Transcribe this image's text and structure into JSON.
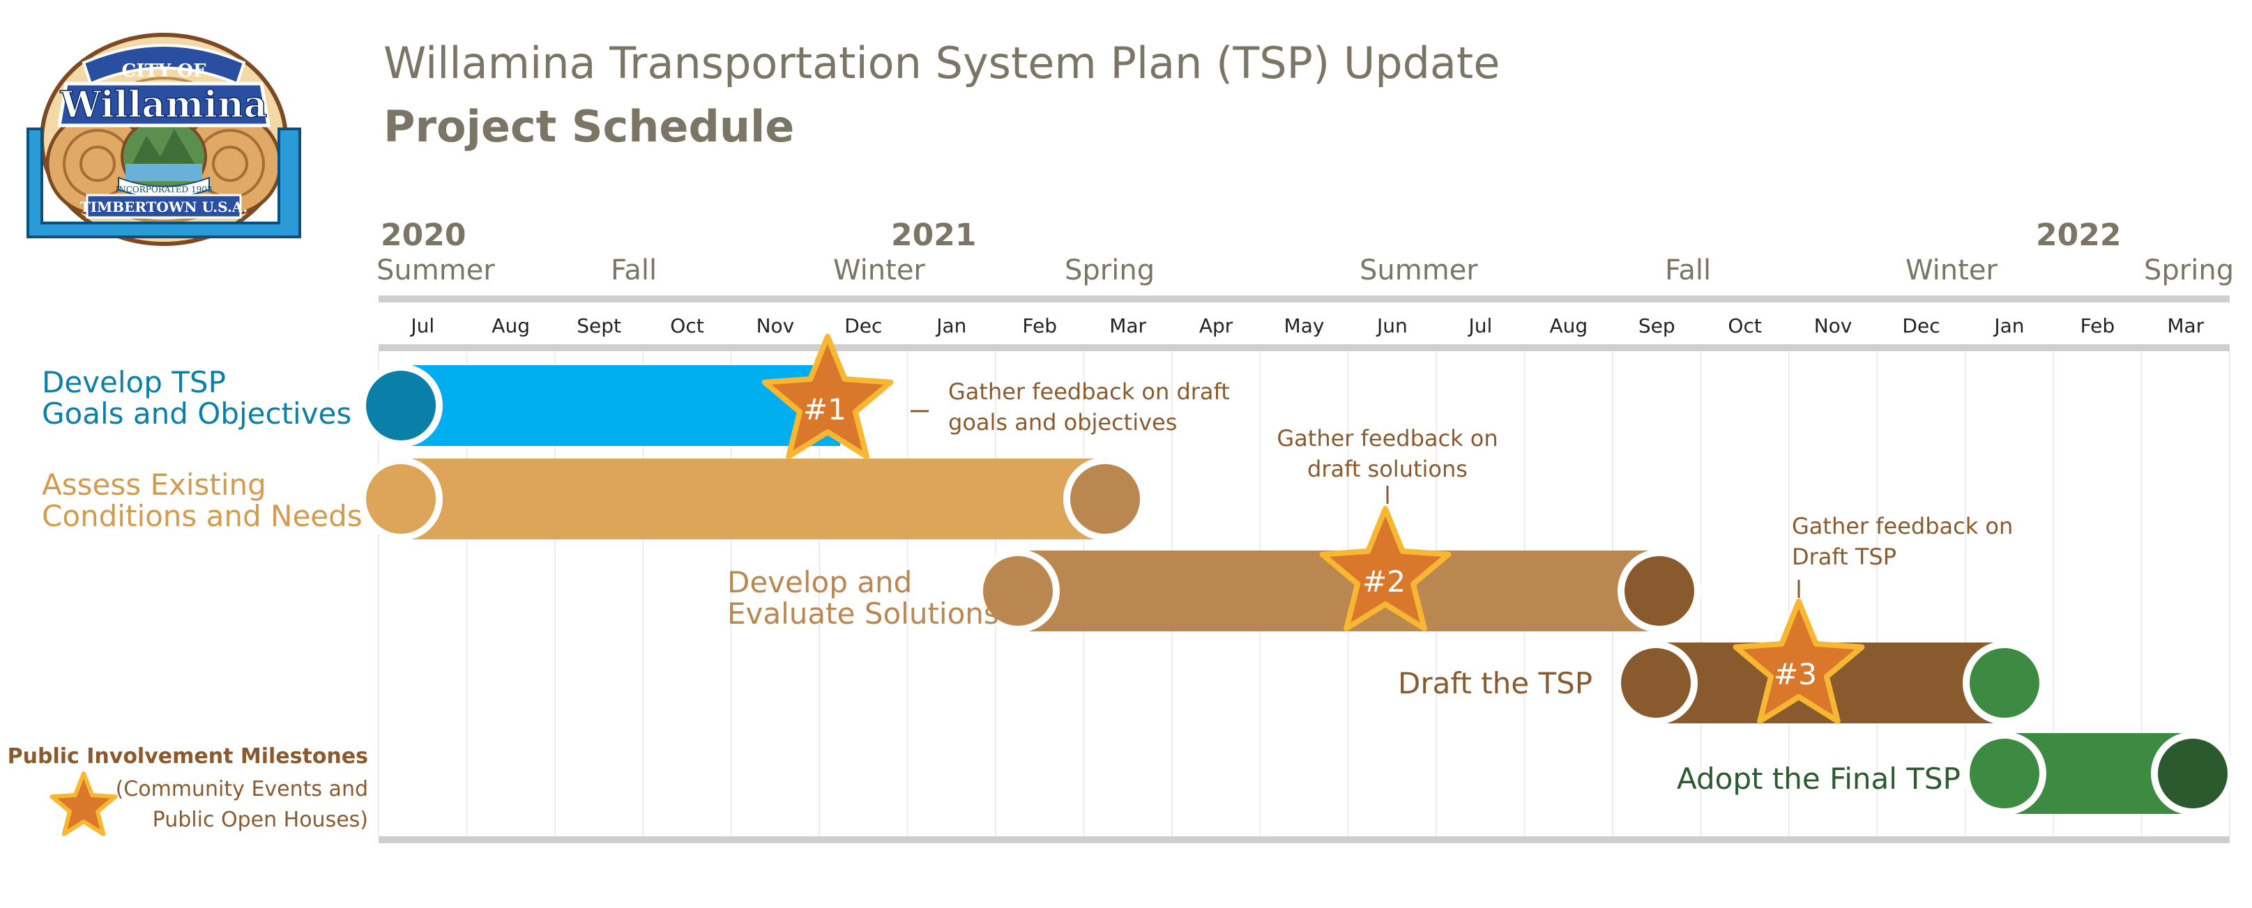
{
  "title": "Willamina Transportation System Plan (TSP) Update",
  "subtitle": "Project Schedule",
  "logo": {
    "top_text": "CITY OF",
    "main_text": "Willamina",
    "ribbon_text": "INCORPORATED 1903",
    "bottom_text": "TIMBERTOWN U.S.A."
  },
  "years": [
    "2020",
    "2021",
    "2022"
  ],
  "seasons": [
    "Summer",
    "Fall",
    "Winter",
    "Spring",
    "Summer",
    "Fall",
    "Winter",
    "Spring"
  ],
  "months": [
    "Jul",
    "Aug",
    "Sept",
    "Oct",
    "Nov",
    "Dec",
    "Jan",
    "Feb",
    "Mar",
    "Apr",
    "May",
    "Jun",
    "Jul",
    "Aug",
    "Sep",
    "Oct",
    "Nov",
    "Dec",
    "Jan",
    "Feb",
    "Mar"
  ],
  "tasks": [
    {
      "label_line1": "Develop TSP",
      "label_line2": "Goals and Objectives",
      "color": "#00adef",
      "start_color": "#0a7fa8",
      "end_color": "#00adef"
    },
    {
      "label_line1": "Assess Existing",
      "label_line2": "Conditions and Needs",
      "color": "#dda55a",
      "start_color": "#dda55a",
      "end_color": "#b9874f"
    },
    {
      "label_line1": "Develop and",
      "label_line2": "Evaluate Solutions",
      "color": "#b9874f",
      "start_color": "#b9874f",
      "end_color": "#8a5a2f"
    },
    {
      "label_line1": "Draft the TSP",
      "label_line2": "",
      "color": "#8a5a2f",
      "start_color": "#8a5a2f",
      "end_color": "#3d8a42"
    },
    {
      "label_line1": "Adopt the Final TSP",
      "label_line2": "",
      "color": "#3d8a42",
      "start_color": "#3d8a42",
      "end_color": "#2b5a2f"
    }
  ],
  "milestones": [
    {
      "label": "#1",
      "note_line1": "Gather feedback on draft",
      "note_line2": "goals and objectives"
    },
    {
      "label": "#2",
      "note_line1": "Gather feedback on",
      "note_line2": "draft solutions"
    },
    {
      "label": "#3",
      "note_line1": "Gather feedback on",
      "note_line2": "Draft TSP"
    }
  ],
  "legend": {
    "title": "Public Involvement Milestones",
    "line1": "(Community Events and",
    "line2": "Public Open Houses)"
  },
  "colors": {
    "header": "#7a7565",
    "star_fill": "#d9772a",
    "star_stroke": "#f7b733",
    "note_text": "#8a5a2f",
    "grid": "#e6e6e6",
    "rule": "#cfcfcf"
  }
}
